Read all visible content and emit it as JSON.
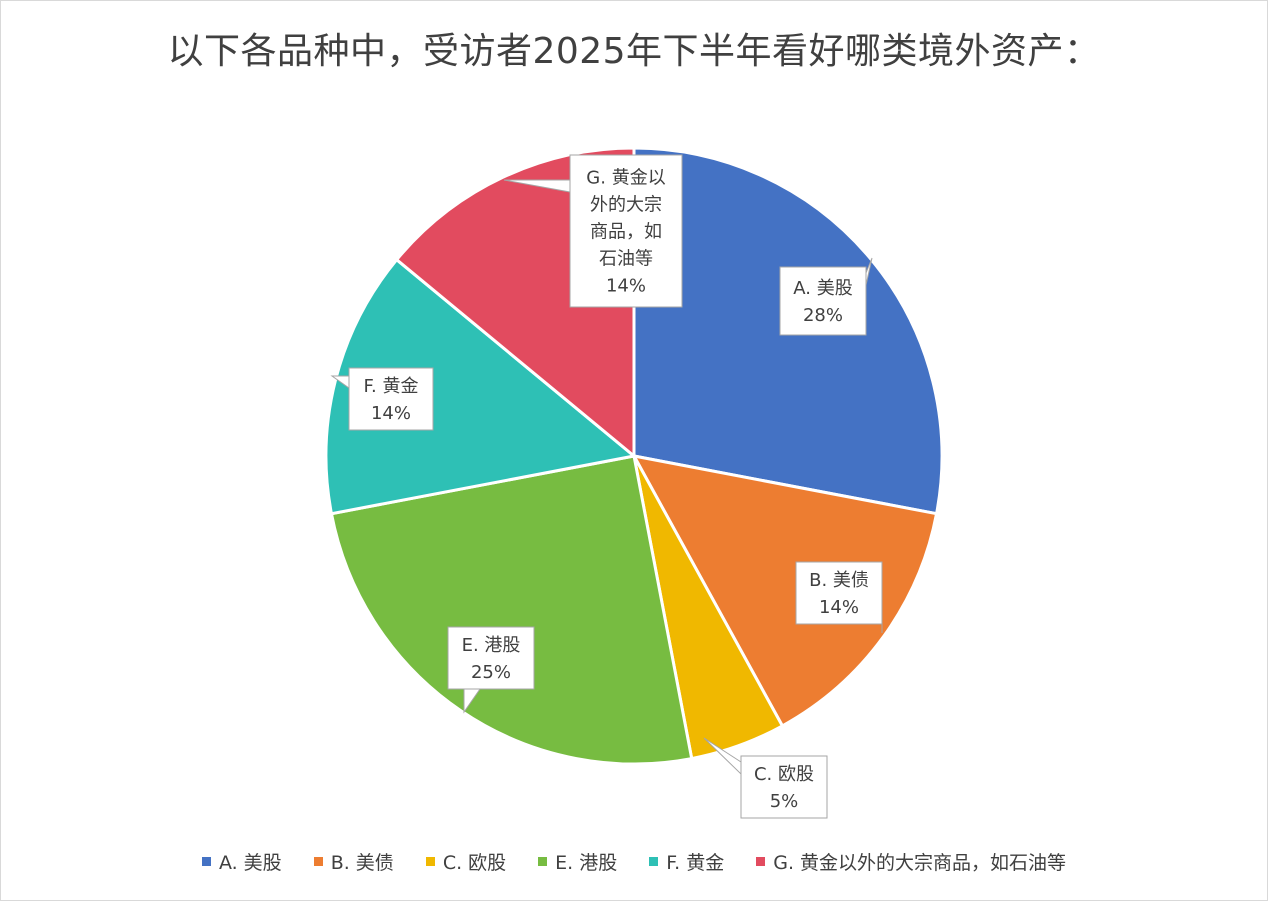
{
  "chart_data": {
    "type": "pie",
    "title": "以下各品种中，受访者2025年下半年看好哪类境外资产：",
    "categories": [
      "A. 美股",
      "B. 美债",
      "C. 欧股",
      "E. 港股",
      "F. 黄金",
      "G. 黄金以外的大宗商品，如石油等"
    ],
    "values": [
      28,
      14,
      5,
      25,
      14,
      14
    ],
    "data_labels": [
      [
        "A. 美股",
        "28%"
      ],
      [
        "B. 美债",
        "14%"
      ],
      [
        "C. 欧股",
        "5%"
      ],
      [
        "E. 港股",
        "25%"
      ],
      [
        "F. 黄金",
        "14%"
      ],
      [
        "G. 黄金以",
        "外的大宗",
        "商品，如",
        "石油等",
        "14%"
      ]
    ],
    "colors": [
      "#4472C4",
      "#ED7D31",
      "#F0B800",
      "#77BC41",
      "#2EC0B5",
      "#E24B5F"
    ],
    "legend_position": "bottom"
  }
}
